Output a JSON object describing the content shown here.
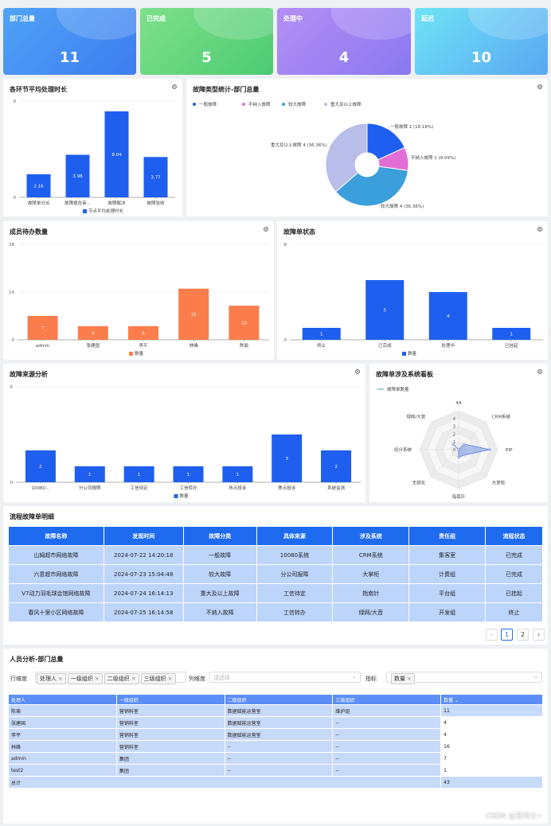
{
  "kpis": [
    {
      "title": "部门总量",
      "value": "11"
    },
    {
      "title": "已完成",
      "value": "5"
    },
    {
      "title": "处理中",
      "value": "4"
    },
    {
      "title": "延迟",
      "value": "10"
    }
  ],
  "charts": {
    "avg_time": {
      "title": "各环节平均处理时长",
      "type": "bar",
      "categories": [
        "故障单分派",
        "故障报告审...",
        "故障解决",
        "故障验收"
      ],
      "values": [
        2.16,
        3.98,
        8.04,
        3.77
      ],
      "ylim": [
        0,
        9
      ],
      "yticks": [
        "9",
        "0"
      ],
      "legend": "节点平均处理时长",
      "color": "#1f5ff0"
    },
    "fault_type": {
      "title": "故障类型统计-部门总量",
      "type": "pie",
      "legend": [
        "一般故障",
        "不纳入故障",
        "较大故障",
        "重大及以上故障"
      ],
      "colors": [
        "#1f5ff0",
        "#e26fd6",
        "#3a9fdb",
        "#b9bde9"
      ],
      "values": [
        2,
        1,
        4,
        4
      ],
      "labels": [
        "一般故障 2 (18.18%)",
        "不纳入故障 1 (9.09%)",
        "较大故障 4 (36.36%)",
        "重大及以上故障 4 (36.36%)"
      ]
    },
    "member_todo": {
      "title": "成员待办数量",
      "type": "bar",
      "categories": [
        "admin",
        "张建国",
        "李平",
        "林峰",
        "陈瑜"
      ],
      "values": [
        7,
        4,
        4,
        15,
        10
      ],
      "ylim": [
        0,
        28
      ],
      "yticks": [
        "28",
        "14",
        "0"
      ],
      "legend": "数量",
      "color": "#fb7d4b"
    },
    "order_status": {
      "title": "故障单状态",
      "type": "bar",
      "categories": [
        "终止",
        "已完成",
        "处理中",
        "已挂起"
      ],
      "values": [
        1,
        5,
        4,
        1
      ],
      "ylim": [
        0,
        8
      ],
      "yticks": [
        "8",
        "0"
      ],
      "legend": "数量",
      "color": "#1f5ff0"
    },
    "fault_source": {
      "title": "故障来源分析",
      "type": "bar",
      "categories": [
        "10080...",
        "分公司报障",
        "工信待定",
        "工信转办",
        "热点投诉",
        "焦点投诉",
        "系统监测"
      ],
      "values": [
        2,
        1,
        1,
        1,
        1,
        3,
        2
      ],
      "ylim": [
        0,
        6
      ],
      "yticks": [
        "6",
        "0"
      ],
      "legend": "数量",
      "color": "#1f5ff0"
    },
    "radar": {
      "title": "故障单涉及系统看板",
      "type": "radar",
      "legend": "故障单数量",
      "indicators": [
        "4A",
        "CRM系统",
        "EIP",
        "大掌柜",
        "指南针",
        "无纸化",
        "经分系统",
        "绿网/大音"
      ],
      "values": [
        0,
        1,
        4,
        1,
        1,
        0,
        0,
        1
      ],
      "max": 4,
      "scale_labels": [
        "0",
        "1",
        "2",
        "3",
        "4"
      ]
    }
  },
  "flow_table": {
    "title": "流程故障单明细",
    "headers": [
      "故障名称",
      "发现时间",
      "故障分类",
      "具体来源",
      "涉及系统",
      "责任组",
      "流程状态"
    ],
    "rows": [
      [
        "山姆超市网络故障",
        "2024-07-22 14:20:18",
        "一般故障",
        "10080系统",
        "CRM系统",
        "集客室",
        "已完成"
      ],
      [
        "六意超市网络故障",
        "2024-07-23 15:04:48",
        "较大故障",
        "分公司报障",
        "大掌柜",
        "计费组",
        "已完成"
      ],
      [
        "V7动力羽毛球会馆网络故障",
        "2024-07-24 16:14:13",
        "重大及以上故障",
        "工信待定",
        "指南针",
        "平台组",
        "已挂起"
      ],
      [
        "春风十里小区网络故障",
        "2024-07-25 16:14:58",
        "不纳入故障",
        "工信转办",
        "绿网/大音",
        "开发组",
        "终止"
      ]
    ],
    "pagination": {
      "prev": "‹",
      "pages": [
        "1",
        "2"
      ],
      "next": "›"
    }
  },
  "person_analysis": {
    "title": "人员分析-部门总量",
    "row_dim_label": "行维度",
    "row_dims": [
      "处理人",
      "一级组织",
      "二级组织",
      "三级组织"
    ],
    "col_dim_label": "列维度",
    "col_placeholder": "请选择",
    "metric_label": "指标",
    "metrics": [
      "数量"
    ],
    "headers": [
      "处理人",
      "一级组织",
      "二级组织",
      "三级组织",
      "数量 ⌄"
    ],
    "rows": [
      [
        "陈瑜",
        "营销科室",
        "数据赋能运营室",
        "维护组",
        "11"
      ],
      [
        "张建国",
        "营销科室",
        "数据赋能运营室",
        "--",
        "4"
      ],
      [
        "李平",
        "营销科室",
        "数据赋能运营室",
        "--",
        "4"
      ],
      [
        "林峰",
        "营销科室",
        "--",
        "--",
        "16"
      ],
      [
        "admin",
        "集团",
        "--",
        "--",
        "7"
      ],
      [
        "test2",
        "集团",
        "--",
        "--",
        "1"
      ]
    ],
    "total_label": "总计",
    "total_value": "43"
  },
  "watermark": "CSDN @爱码士~"
}
